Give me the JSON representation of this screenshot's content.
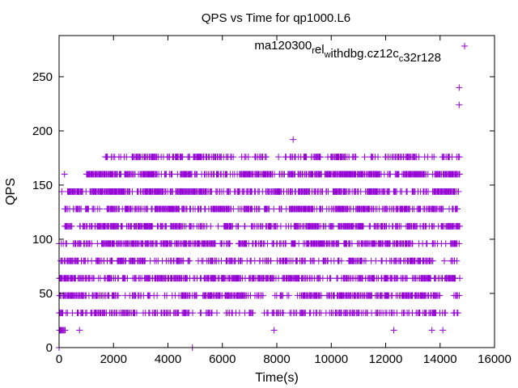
{
  "chart_data": {
    "type": "scatter",
    "title": "QPS vs Time for qp1000.L6",
    "xlabel": "Time(s)",
    "ylabel": "QPS",
    "xlim": [
      0,
      16000
    ],
    "ylim": [
      0,
      288
    ],
    "xticks": [
      0,
      2000,
      4000,
      6000,
      8000,
      10000,
      12000,
      14000,
      16000
    ],
    "yticks": [
      0,
      50,
      100,
      150,
      200,
      250
    ],
    "grid": false,
    "legend_position": "top-right",
    "series": [
      {
        "name": "ma120300_rel_withdbg.cz12c_c32r128",
        "color": "#9400d3",
        "marker": "+",
        "bands": [
          {
            "qps": 16,
            "x_range": [
              0,
              200
            ],
            "density": 1.0
          },
          {
            "qps": 32,
            "x_range": [
              0,
              14700
            ],
            "density": 0.35
          },
          {
            "qps": 48,
            "x_range": [
              0,
              14700
            ],
            "density": 0.6
          },
          {
            "qps": 64,
            "x_range": [
              0,
              14700
            ],
            "density": 0.7
          },
          {
            "qps": 80,
            "x_range": [
              0,
              14600
            ],
            "density": 0.5
          },
          {
            "qps": 96,
            "x_range": [
              0,
              14700
            ],
            "density": 0.6
          },
          {
            "qps": 112,
            "x_range": [
              200,
              14700
            ],
            "density": 0.75
          },
          {
            "qps": 128,
            "x_range": [
              200,
              14700
            ],
            "density": 0.9
          },
          {
            "qps": 144,
            "x_range": [
              300,
              14700
            ],
            "density": 0.95
          },
          {
            "qps": 160,
            "x_range": [
              1000,
              14700
            ],
            "density": 0.97
          },
          {
            "qps": 176,
            "x_range": [
              1700,
              14700
            ],
            "density": 0.4
          }
        ],
        "points": [
          [
            0,
            0
          ],
          [
            4900,
            0
          ],
          [
            750,
            16
          ],
          [
            7900,
            16
          ],
          [
            12300,
            16
          ],
          [
            13700,
            16
          ],
          [
            14100,
            16
          ],
          [
            100,
            144
          ],
          [
            200,
            160
          ],
          [
            8600,
            192
          ],
          [
            14700,
            224
          ],
          [
            14700,
            240
          ]
        ]
      }
    ]
  }
}
